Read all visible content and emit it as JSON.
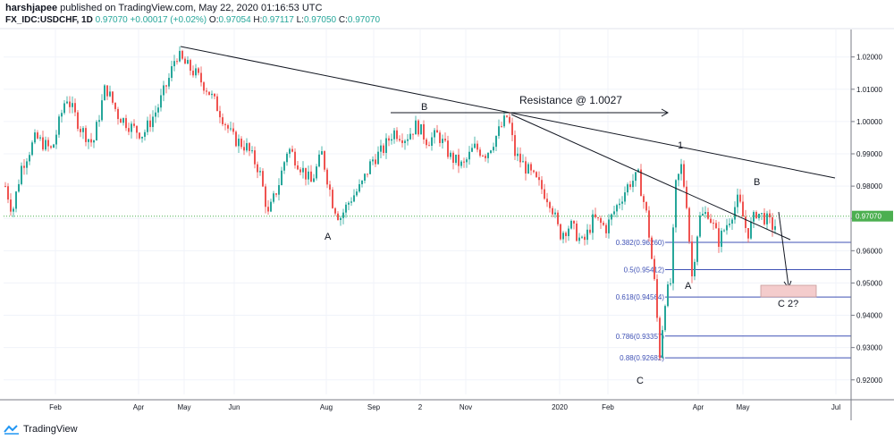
{
  "header": {
    "author": "harshjapee",
    "published": "published on TradingView.com, May 22, 2020 01:16:53 UTC",
    "symbol": "FX_IDC:USDCHF, 1D",
    "last": "0.97070",
    "change": "+0.00017 (+0.02%)",
    "o_label": "O:",
    "o": "0.97054",
    "h_label": "H:",
    "h": "0.97117",
    "l_label": "L:",
    "l": "0.97050",
    "c_label": "C:",
    "c": "0.97070"
  },
  "footer": {
    "brand": "TradingView"
  },
  "colors": {
    "up": "#26a69a",
    "down": "#ef5350",
    "fib": "#3f51b5",
    "price_line": "#4caf50",
    "trend": "#131722",
    "target_zone": "#f4cccc"
  },
  "chart_data": {
    "type": "candlestick",
    "ylim": [
      0.9155,
      1.0285
    ],
    "y_ticks": [
      "1.02000",
      "1.01000",
      "1.00000",
      "0.99000",
      "0.98000",
      "0.97000",
      "0.96000",
      "0.95000",
      "0.94000",
      "0.93000",
      "0.92000"
    ],
    "x_ticks": [
      "Feb",
      "Apr",
      "May",
      "Jun",
      "Aug",
      "Sep",
      "2",
      "Nov",
      "2020",
      "Feb",
      "Apr",
      "May",
      "Jul"
    ],
    "current_price": "0.97070",
    "fib_levels": [
      {
        "label": "0.382(0.96260)",
        "value": 0.9626
      },
      {
        "label": "0.5(0.95412)",
        "value": 0.95412
      },
      {
        "label": "0.618(0.94564)",
        "value": 0.94564
      },
      {
        "label": "0.786(0.93357)",
        "value": 0.93357
      },
      {
        "label": "0.88(0.92682)",
        "value": 0.92682
      }
    ],
    "annotations": [
      "Resistance @ 1.0027",
      "B",
      "A",
      "1",
      "B",
      "A",
      "C",
      "C 2?"
    ],
    "close_path": [
      [
        0,
        0.988
      ],
      [
        6,
        0.98
      ],
      [
        14,
        0.972
      ],
      [
        24,
        0.986
      ],
      [
        40,
        0.995
      ],
      [
        58,
        0.991
      ],
      [
        74,
        1.008
      ],
      [
        90,
        0.998
      ],
      [
        104,
        0.993
      ],
      [
        118,
        1.011
      ],
      [
        132,
        1.002
      ],
      [
        148,
        0.998
      ],
      [
        160,
        0.996
      ],
      [
        176,
        1.004
      ],
      [
        190,
        1.014
      ],
      [
        197,
        1.021
      ],
      [
        206,
        1.018
      ],
      [
        218,
        1.015
      ],
      [
        232,
        1.01
      ],
      [
        246,
        1.003
      ],
      [
        260,
        0.995
      ],
      [
        276,
        0.992
      ],
      [
        290,
        0.985
      ],
      [
        300,
        0.971
      ],
      [
        312,
        0.981
      ],
      [
        322,
        0.992
      ],
      [
        334,
        0.987
      ],
      [
        348,
        0.981
      ],
      [
        360,
        0.99
      ],
      [
        372,
        0.975
      ],
      [
        380,
        0.97
      ],
      [
        392,
        0.976
      ],
      [
        404,
        0.98
      ],
      [
        416,
        0.988
      ],
      [
        428,
        0.991
      ],
      [
        440,
        0.997
      ],
      [
        454,
        0.995
      ],
      [
        466,
        0.999
      ],
      [
        478,
        0.994
      ],
      [
        490,
        0.996
      ],
      [
        504,
        0.989
      ],
      [
        518,
        0.986
      ],
      [
        530,
        0.992
      ],
      [
        544,
        0.99
      ],
      [
        556,
        0.996
      ],
      [
        568,
        1.002
      ],
      [
        576,
        0.99
      ],
      [
        590,
        0.985
      ],
      [
        604,
        0.98
      ],
      [
        616,
        0.975
      ],
      [
        626,
        0.965
      ],
      [
        638,
        0.968
      ],
      [
        652,
        0.962
      ],
      [
        664,
        0.97
      ],
      [
        678,
        0.967
      ],
      [
        692,
        0.975
      ],
      [
        704,
        0.981
      ],
      [
        714,
        0.983
      ],
      [
        724,
        0.97
      ],
      [
        732,
        0.95
      ],
      [
        738,
        0.928
      ],
      [
        744,
        0.945
      ],
      [
        750,
        0.95
      ],
      [
        756,
        0.98
      ],
      [
        762,
        0.986
      ],
      [
        768,
        0.975
      ],
      [
        774,
        0.952
      ],
      [
        782,
        0.97
      ],
      [
        792,
        0.972
      ],
      [
        804,
        0.963
      ],
      [
        816,
        0.97
      ],
      [
        826,
        0.976
      ],
      [
        836,
        0.965
      ],
      [
        846,
        0.972
      ],
      [
        856,
        0.97
      ],
      [
        866,
        0.967
      ],
      [
        870,
        0.9707
      ]
    ]
  }
}
